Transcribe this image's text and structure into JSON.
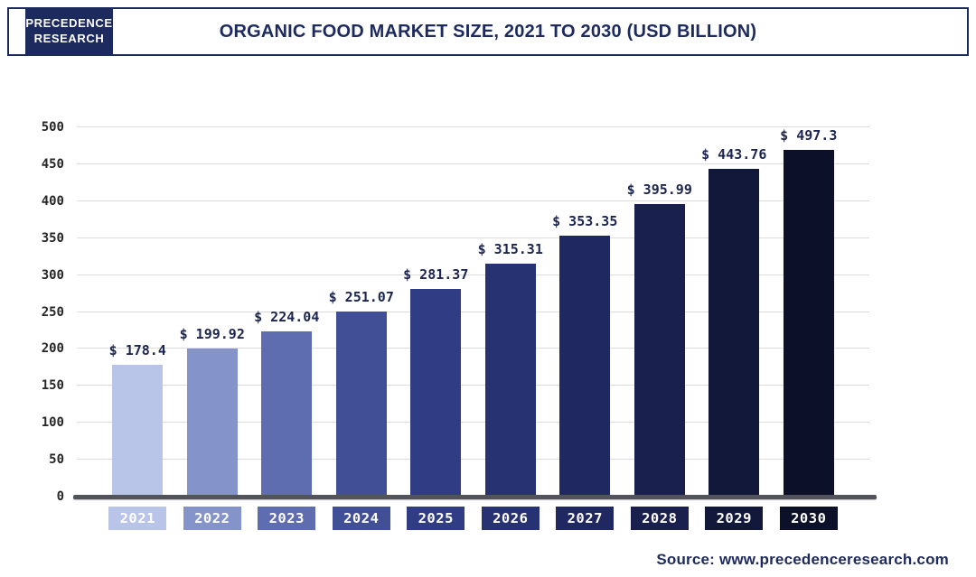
{
  "header": {
    "logo_line1": "PRECEDENCE",
    "logo_line2": "RESEARCH",
    "title": "ORGANIC FOOD MARKET SIZE, 2021 TO 2030 (USD BILLION)"
  },
  "footer": {
    "source_text": "Source: www.precedenceresearch.com"
  },
  "chart_data": {
    "type": "bar",
    "title": "Organic Food Market Size, 2021 to 2030 (USD Billion)",
    "categories": [
      "2021",
      "2022",
      "2023",
      "2024",
      "2025",
      "2026",
      "2027",
      "2028",
      "2029",
      "2030"
    ],
    "values": [
      178.4,
      199.92,
      224.04,
      251.07,
      281.37,
      315.31,
      353.35,
      395.99,
      443.76,
      497.3
    ],
    "value_labels": [
      "$ 178.4",
      "$ 199.92",
      "$ 224.04",
      "$ 251.07",
      "$ 281.37",
      "$ 315.31",
      "$ 353.35",
      "$ 395.99",
      "$ 443.76",
      "$ 497.3"
    ],
    "bar_colors": [
      "#b9c5e8",
      "#8494ca",
      "#5d6db0",
      "#414f97",
      "#303d84",
      "#273272",
      "#1f2860",
      "#19204e",
      "#12183a",
      "#0c1129"
    ],
    "y_ticks": [
      0,
      50,
      100,
      150,
      200,
      250,
      300,
      350,
      400,
      450,
      500
    ],
    "ylim": [
      0,
      500
    ],
    "grid": true,
    "legend": null,
    "xlabel": "",
    "ylabel": ""
  }
}
